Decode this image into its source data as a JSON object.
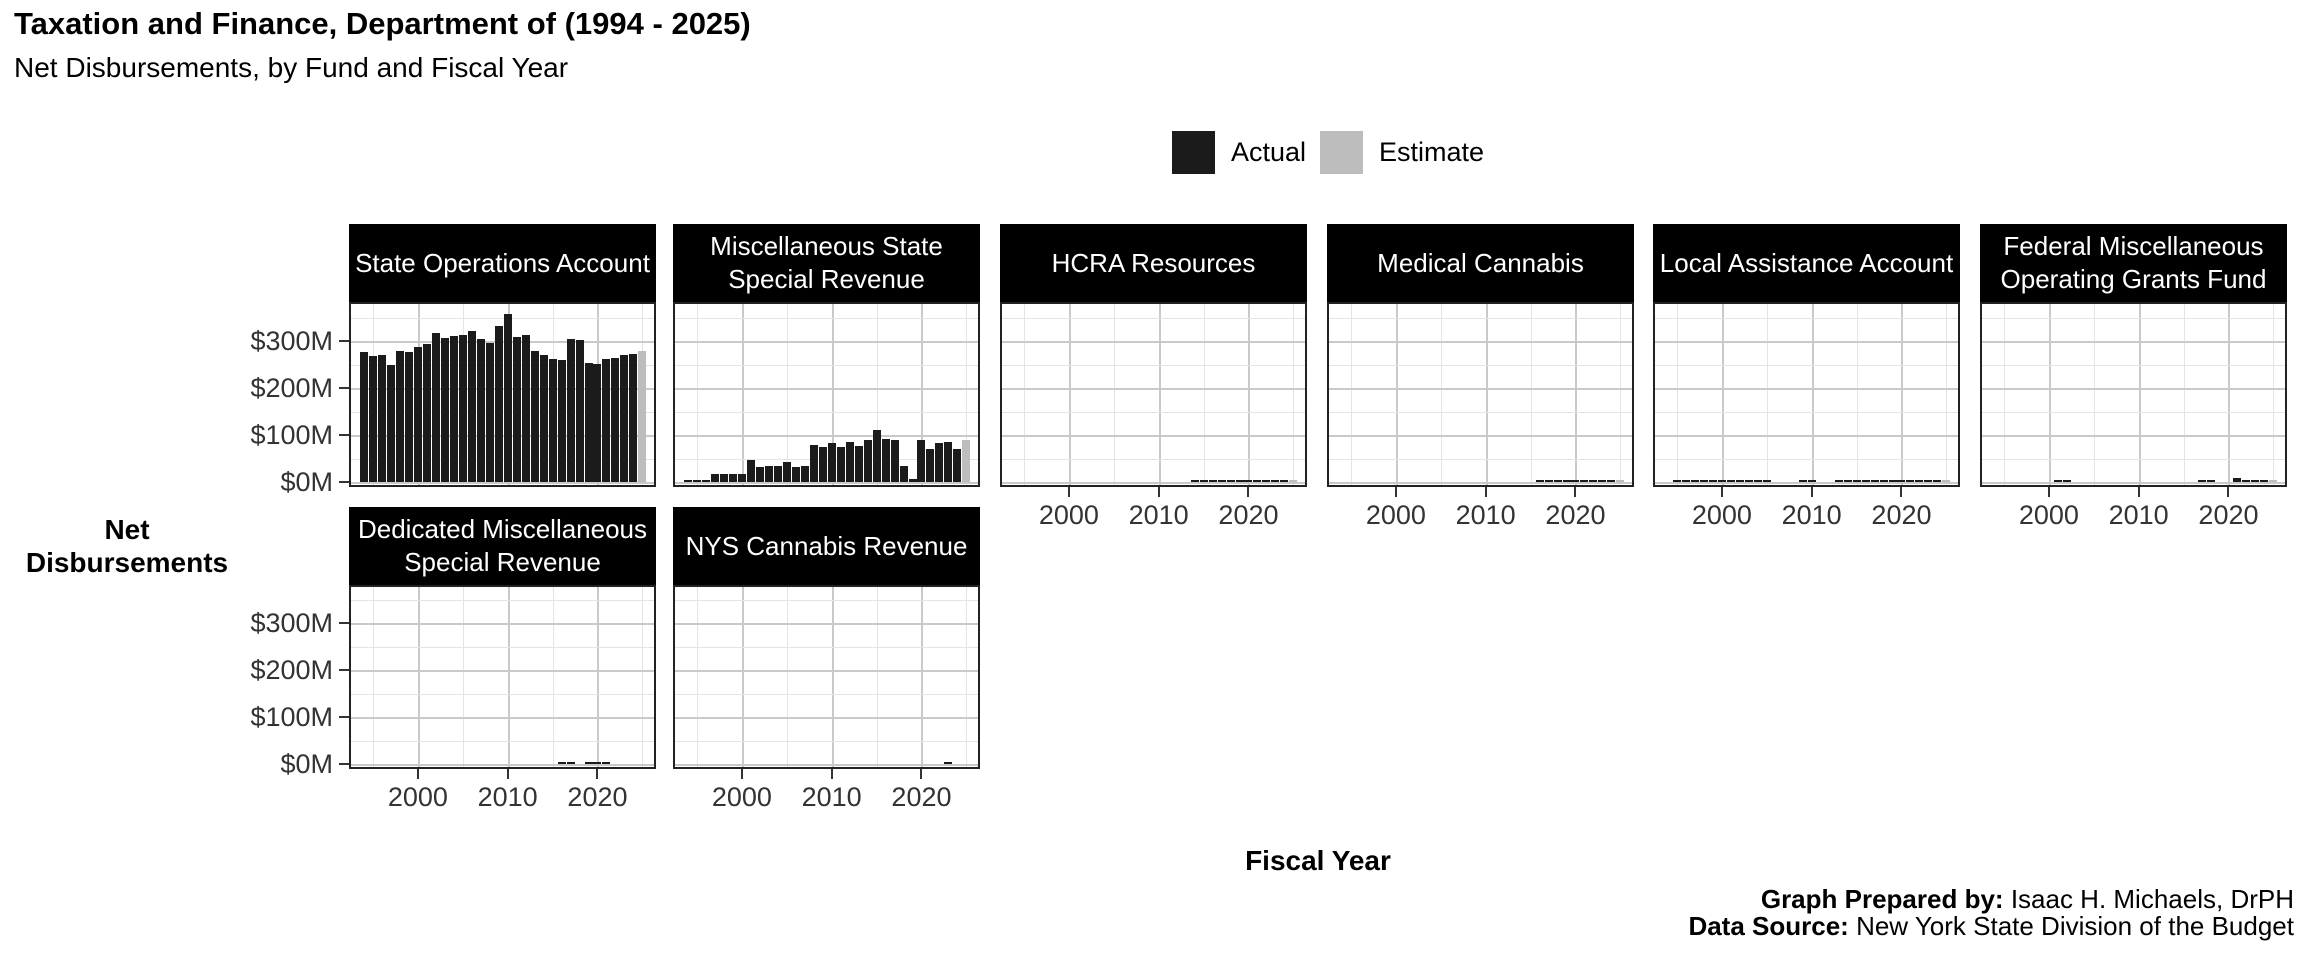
{
  "title": "Taxation and Finance, Department of (1994 - 2025)",
  "subtitle": "Net Disbursements, by Fund and Fiscal Year",
  "legend": {
    "actual_label": "Actual",
    "estimate_label": "Estimate"
  },
  "axes": {
    "y_title_line1": "Net",
    "y_title_line2": "Disbursements",
    "x_title": "Fiscal Year",
    "y_tick_labels": [
      "$0M",
      "$100M",
      "$200M",
      "$300M"
    ],
    "x_tick_labels": [
      "2000",
      "2010",
      "2020"
    ]
  },
  "footer": {
    "prepared_by_label": "Graph Prepared by:",
    "prepared_by_value": "Isaac H. Michaels, DrPH",
    "source_label": "Data Source:",
    "source_value": "New York State Division of the Budget"
  },
  "colors": {
    "actual": "#1b1b1b",
    "estimate": "#bdbdbd",
    "strip_bg": "#000000",
    "strip_text": "#ffffff",
    "grid_major": "#c9c9c9",
    "grid_minor": "#e4e4e4",
    "panel_border": "#222222",
    "tick": "#333333"
  },
  "chart_data": {
    "type": "bar",
    "title": "Taxation and Finance, Department of (1994 - 2025)",
    "subtitle": "Net Disbursements, by Fund and Fiscal Year",
    "xlabel": "Fiscal Year",
    "ylabel": "Net Disbursements",
    "unit": "$M",
    "ylim": [
      0,
      380
    ],
    "y_major_ticks": [
      0,
      100,
      200,
      300
    ],
    "y_minor_gridlines": [
      50,
      150,
      250,
      350
    ],
    "x_major_ticks": [
      2000,
      2010,
      2020
    ],
    "x_minor_gridlines": [
      1995,
      2005,
      2015,
      2025
    ],
    "year_start": 1994,
    "year_end": 2025,
    "estimate_year": 2025,
    "legend": [
      "Actual",
      "Estimate"
    ],
    "legend_position": "top-center",
    "grid": true,
    "facets": [
      {
        "label": "State Operations Account",
        "show_x_axis": false,
        "show_y_axis": true,
        "values": [
          277,
          268,
          271,
          249,
          279,
          277,
          287,
          294,
          318,
          307,
          310,
          312,
          322,
          305,
          295,
          333,
          358,
          308,
          313,
          279,
          270,
          262,
          259,
          305,
          303,
          254,
          252,
          261,
          264,
          270,
          273,
          278
        ]
      },
      {
        "label": "Miscellaneous State\nSpecial Revenue",
        "show_x_axis": false,
        "show_y_axis": false,
        "values": [
          1,
          1,
          1,
          18,
          18,
          18,
          18,
          46,
          32,
          35,
          35,
          42,
          32,
          35,
          78,
          74,
          83,
          74,
          85,
          76,
          89,
          111,
          92,
          90,
          34,
          7,
          90,
          71,
          82,
          85,
          71,
          90
        ]
      },
      {
        "label": "HCRA Resources",
        "show_x_axis": true,
        "show_y_axis": false,
        "values": [
          0,
          0,
          0,
          0,
          0,
          0,
          0,
          0,
          0,
          0,
          0,
          0,
          0,
          0,
          0,
          0,
          0,
          0,
          0,
          0,
          2,
          5,
          5,
          5,
          5,
          5,
          5,
          5,
          5,
          5,
          5,
          4
        ]
      },
      {
        "label": "Medical Cannabis",
        "show_x_axis": true,
        "show_y_axis": false,
        "values": [
          0,
          0,
          0,
          0,
          0,
          0,
          0,
          0,
          0,
          0,
          0,
          0,
          0,
          0,
          0,
          0,
          0,
          0,
          0,
          0,
          0,
          0,
          1,
          1,
          2,
          2,
          3,
          5,
          5,
          3,
          2,
          5
        ]
      },
      {
        "label": "Local Assistance Account",
        "show_x_axis": true,
        "show_y_axis": false,
        "values": [
          0,
          0.8,
          0.8,
          0.8,
          0.8,
          0.8,
          0.8,
          0.8,
          0.8,
          0.8,
          0.8,
          0.8,
          0,
          0,
          0,
          3,
          4,
          0,
          0,
          1,
          1,
          1,
          1,
          1,
          1,
          1,
          1,
          1,
          1,
          1,
          1,
          1
        ]
      },
      {
        "label": "Federal Miscellaneous\nOperating Grants Fund",
        "show_x_axis": true,
        "show_y_axis": false,
        "values": [
          0,
          0,
          0,
          0,
          0,
          0,
          0,
          2,
          2,
          0,
          0,
          0,
          0,
          0,
          0,
          0,
          0,
          0,
          0,
          0,
          0,
          0,
          0,
          2,
          2,
          0,
          0,
          8,
          4,
          1,
          1,
          1
        ]
      },
      {
        "label": "Dedicated Miscellaneous\nSpecial Revenue",
        "show_x_axis": true,
        "show_y_axis": true,
        "values": [
          0,
          0,
          0,
          0,
          0,
          0,
          0,
          0,
          0,
          0,
          0,
          0,
          0,
          0,
          0,
          0,
          0,
          0,
          0,
          0,
          0,
          0,
          1,
          1,
          0,
          1,
          1,
          1,
          0,
          0,
          0,
          0
        ]
      },
      {
        "label": "NYS Cannabis Revenue",
        "show_x_axis": true,
        "show_y_axis": false,
        "values": [
          0,
          0,
          0,
          0,
          0,
          0,
          0,
          0,
          0,
          0,
          0,
          0,
          0,
          0,
          0,
          0,
          0,
          0,
          0,
          0,
          0,
          0,
          0,
          0,
          0,
          0,
          0,
          0,
          0,
          2,
          0,
          0
        ]
      }
    ]
  }
}
